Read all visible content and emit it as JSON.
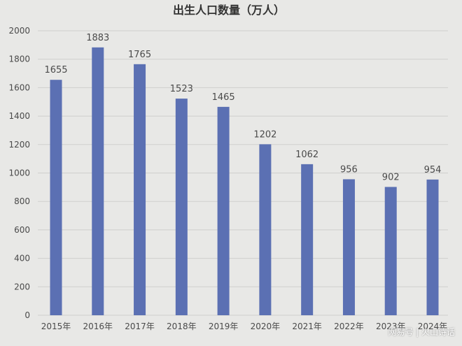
{
  "chart_data": {
    "type": "bar",
    "title": "出生人口数量（万人）",
    "categories": [
      "2015年",
      "2016年",
      "2017年",
      "2018年",
      "2019年",
      "2020年",
      "2021年",
      "2022年",
      "2023年",
      "2024年"
    ],
    "values": [
      1655,
      1883,
      1765,
      1523,
      1465,
      1202,
      1062,
      956,
      902,
      954
    ],
    "ylim": [
      0,
      2000
    ],
    "yticks": [
      0,
      200,
      400,
      600,
      800,
      1000,
      1200,
      1400,
      1600,
      1800,
      2000
    ],
    "grid": true,
    "data_labels": true,
    "colors": {
      "bar": "#5b70b3",
      "grid": "#cfcfcd",
      "text": "#4a4a4a"
    }
  },
  "watermark": "网易号 | 火山诗话"
}
